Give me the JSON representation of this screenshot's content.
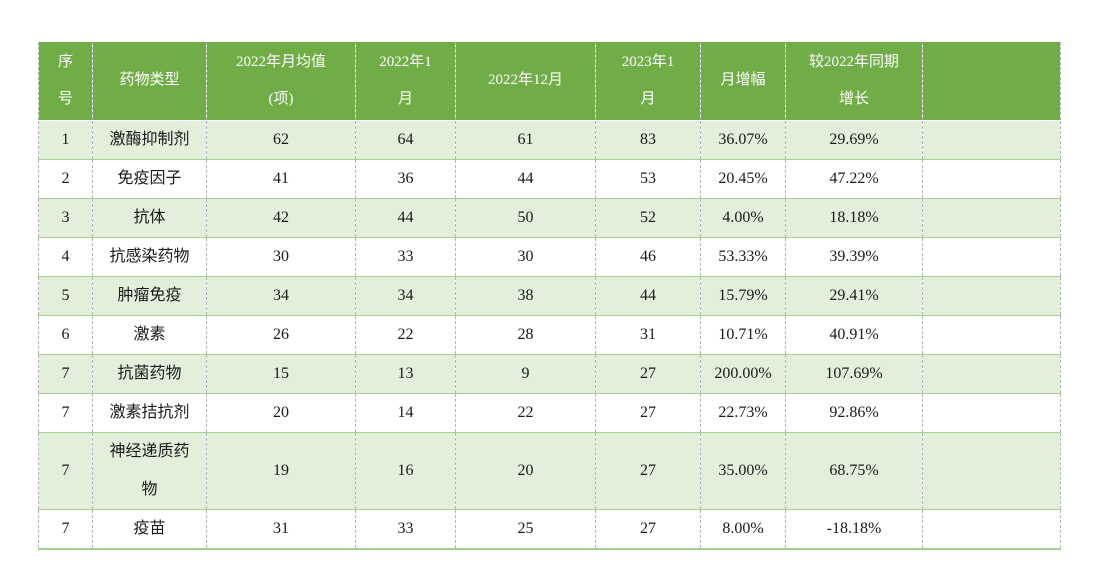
{
  "table": {
    "title_semantic": "drug-category-monthly-statistics-table",
    "columns": [
      {
        "label": "序\n号"
      },
      {
        "label": "药物类型"
      },
      {
        "label": "2022年月均值\n(项)"
      },
      {
        "label": "2022年1\n月"
      },
      {
        "label": "2022年12月"
      },
      {
        "label": "2023年1\n月"
      },
      {
        "label": "月增幅"
      },
      {
        "label": "较2022年同期\n增长"
      },
      {
        "label": ""
      }
    ],
    "rows": [
      [
        "1",
        "激酶抑制剂",
        "62",
        "64",
        "61",
        "83",
        "36.07%",
        "29.69%",
        ""
      ],
      [
        "2",
        "免疫因子",
        "41",
        "36",
        "44",
        "53",
        "20.45%",
        "47.22%",
        ""
      ],
      [
        "3",
        "抗体",
        "42",
        "44",
        "50",
        "52",
        "4.00%",
        "18.18%",
        ""
      ],
      [
        "4",
        "抗感染药物",
        "30",
        "33",
        "30",
        "46",
        "53.33%",
        "39.39%",
        ""
      ],
      [
        "5",
        "肿瘤免疫",
        "34",
        "34",
        "38",
        "44",
        "15.79%",
        "29.41%",
        ""
      ],
      [
        "6",
        "激素",
        "26",
        "22",
        "28",
        "31",
        "10.71%",
        "40.91%",
        ""
      ],
      [
        "7",
        "抗菌药物",
        "15",
        "13",
        "9",
        "27",
        "200.00%",
        "107.69%",
        ""
      ],
      [
        "7",
        "激素拮抗剂",
        "20",
        "14",
        "22",
        "27",
        "22.73%",
        "92.86%",
        ""
      ],
      [
        "7",
        "神经递质药\n物",
        "19",
        "16",
        "20",
        "27",
        "35.00%",
        "68.75%",
        ""
      ],
      [
        "7",
        "疫苗",
        "31",
        "33",
        "25",
        "27",
        "8.00%",
        "-18.18%",
        ""
      ]
    ],
    "tall_row_index": 8
  },
  "colors": {
    "header_bg": "#70ad47",
    "header_text": "#ffffff",
    "band_row_bg": "#e2efda",
    "plain_row_bg": "#ffffff",
    "horizontal_grid": "#a9d08e",
    "vertical_grid_dashed": "#b3b3b3",
    "body_text": "#1a1a1a",
    "page_bg": "#ffffff"
  }
}
